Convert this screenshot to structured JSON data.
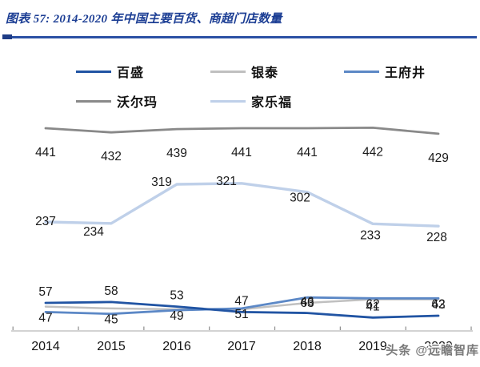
{
  "header": {
    "title": "图表 57:  2014-2020 年中国主要百货、商超门店数量"
  },
  "chart_data": {
    "type": "line",
    "title": "2014-2020 年中国主要百货、商超门店数量",
    "categories": [
      "2014",
      "2015",
      "2016",
      "2017",
      "2018",
      "2019",
      "2020"
    ],
    "series": [
      {
        "key": "parkson",
        "name": "百盛",
        "color": "#2154A3",
        "values": [
          57,
          58,
          53,
          47,
          46,
          41,
          43
        ],
        "data_labels": true
      },
      {
        "key": "yintai",
        "name": "银泰",
        "color": "#C0C0C0",
        "values": [
          53,
          51,
          50,
          50,
          57,
          61,
          61
        ],
        "data_labels": false,
        "values_estimated": true
      },
      {
        "key": "wangfujing",
        "name": "王府井",
        "color": "#5C88C6",
        "values": [
          47,
          45,
          49,
          51,
          63,
          62,
          62
        ],
        "data_labels": true
      },
      {
        "key": "walmart",
        "name": "沃尔玛",
        "color": "#898989",
        "values": [
          441,
          432,
          439,
          441,
          441,
          442,
          429
        ],
        "data_labels": true
      },
      {
        "key": "carrefour",
        "name": "家乐福",
        "color": "#BFD0E9",
        "values": [
          237,
          234,
          319,
          321,
          302,
          233,
          228
        ],
        "data_labels": true
      }
    ],
    "legend_position": "top",
    "grid": false,
    "y_axis_visible": false,
    "ylim": [
      0,
      500
    ]
  },
  "watermark": {
    "text": "头条 @远瞻智库"
  }
}
